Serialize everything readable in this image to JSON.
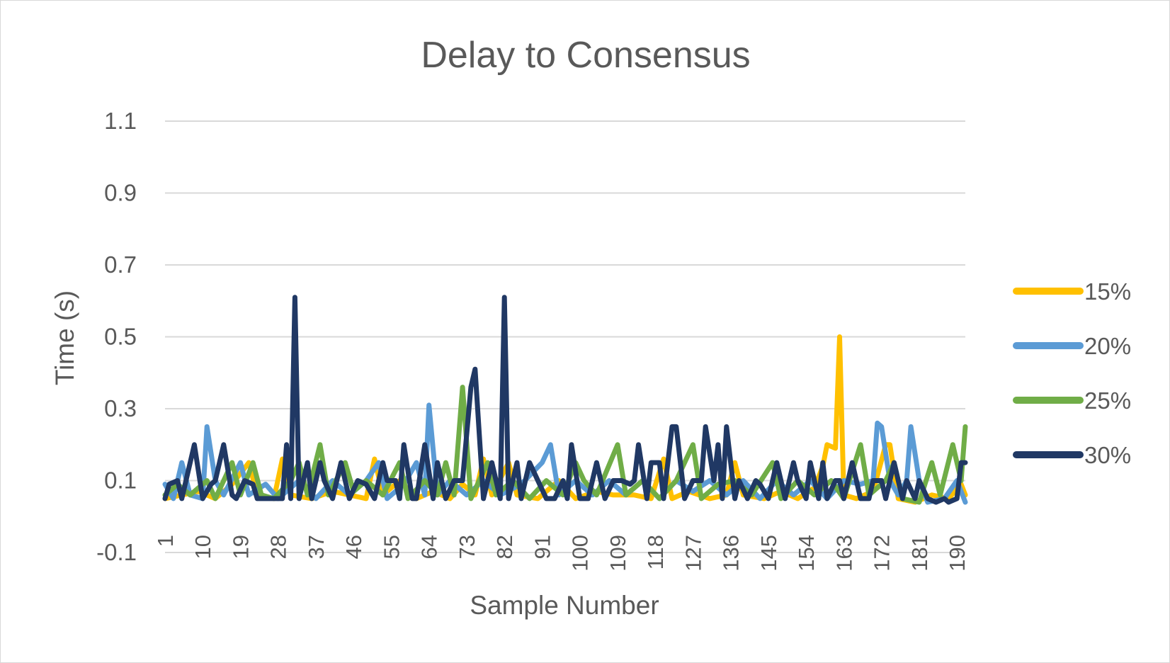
{
  "chart_data": {
    "type": "line",
    "title": "Delay to Consensus",
    "xlabel": "Sample Number",
    "ylabel": "Time (s)",
    "ylim": [
      -0.1,
      1.1
    ],
    "yticks": [
      "-0.1",
      "0.1",
      "0.3",
      "0.5",
      "0.7",
      "0.9",
      "1.1"
    ],
    "yticks_values": [
      -0.1,
      0.1,
      0.3,
      0.5,
      0.7,
      0.9,
      1.1
    ],
    "xticks": [
      "1",
      "10",
      "19",
      "28",
      "37",
      "46",
      "55",
      "64",
      "73",
      "82",
      "91",
      "100",
      "109",
      "118",
      "127",
      "136",
      "145",
      "154",
      "163",
      "172",
      "181",
      "190"
    ],
    "xticks_values": [
      1,
      10,
      19,
      28,
      37,
      46,
      55,
      64,
      73,
      82,
      91,
      100,
      109,
      118,
      127,
      136,
      145,
      154,
      163,
      172,
      181,
      190
    ],
    "xlim": [
      1,
      192
    ],
    "grid": true,
    "legend_position": "right",
    "series": [
      {
        "name": "15%",
        "color": "#FFC000",
        "points": [
          [
            1,
            0.05
          ],
          [
            5,
            0.06
          ],
          [
            9,
            0.07
          ],
          [
            13,
            0.05
          ],
          [
            17,
            0.09
          ],
          [
            21,
            0.15
          ],
          [
            23,
            0.06
          ],
          [
            27,
            0.05
          ],
          [
            29,
            0.16
          ],
          [
            31,
            0.06
          ],
          [
            36,
            0.05
          ],
          [
            41,
            0.07
          ],
          [
            45,
            0.06
          ],
          [
            49,
            0.05
          ],
          [
            51,
            0.16
          ],
          [
            53,
            0.06
          ],
          [
            57,
            0.1
          ],
          [
            61,
            0.05
          ],
          [
            65,
            0.07
          ],
          [
            69,
            0.05
          ],
          [
            72,
            0.09
          ],
          [
            75,
            0.06
          ],
          [
            77,
            0.16
          ],
          [
            79,
            0.06
          ],
          [
            83,
            0.15
          ],
          [
            85,
            0.06
          ],
          [
            90,
            0.05
          ],
          [
            95,
            0.1
          ],
          [
            99,
            0.05
          ],
          [
            104,
            0.07
          ],
          [
            108,
            0.06
          ],
          [
            113,
            0.06
          ],
          [
            117,
            0.05
          ],
          [
            120,
            0.16
          ],
          [
            122,
            0.05
          ],
          [
            126,
            0.07
          ],
          [
            131,
            0.05
          ],
          [
            135,
            0.06
          ],
          [
            137,
            0.15
          ],
          [
            139,
            0.06
          ],
          [
            144,
            0.05
          ],
          [
            148,
            0.07
          ],
          [
            152,
            0.05
          ],
          [
            156,
            0.08
          ],
          [
            158,
            0.14
          ],
          [
            159,
            0.2
          ],
          [
            161,
            0.19
          ],
          [
            162,
            0.5
          ],
          [
            163,
            0.06
          ],
          [
            166,
            0.05
          ],
          [
            170,
            0.07
          ],
          [
            173,
            0.2
          ],
          [
            174,
            0.2
          ],
          [
            176,
            0.05
          ],
          [
            180,
            0.04
          ],
          [
            184,
            0.06
          ],
          [
            188,
            0.05
          ],
          [
            191,
            0.09
          ],
          [
            192,
            0.06
          ]
        ]
      },
      {
        "name": "20%",
        "color": "#5B9BD5",
        "points": [
          [
            1,
            0.09
          ],
          [
            3,
            0.05
          ],
          [
            5,
            0.15
          ],
          [
            7,
            0.06
          ],
          [
            10,
            0.05
          ],
          [
            11,
            0.25
          ],
          [
            13,
            0.1
          ],
          [
            15,
            0.06
          ],
          [
            19,
            0.15
          ],
          [
            21,
            0.06
          ],
          [
            25,
            0.09
          ],
          [
            28,
            0.05
          ],
          [
            33,
            0.1
          ],
          [
            37,
            0.05
          ],
          [
            41,
            0.1
          ],
          [
            45,
            0.06
          ],
          [
            49,
            0.1
          ],
          [
            52,
            0.15
          ],
          [
            54,
            0.05
          ],
          [
            58,
            0.09
          ],
          [
            61,
            0.15
          ],
          [
            63,
            0.06
          ],
          [
            64,
            0.31
          ],
          [
            66,
            0.06
          ],
          [
            69,
            0.1
          ],
          [
            73,
            0.06
          ],
          [
            77,
            0.1
          ],
          [
            81,
            0.06
          ],
          [
            86,
            0.09
          ],
          [
            91,
            0.15
          ],
          [
            93,
            0.2
          ],
          [
            95,
            0.06
          ],
          [
            99,
            0.1
          ],
          [
            103,
            0.06
          ],
          [
            107,
            0.1
          ],
          [
            111,
            0.06
          ],
          [
            115,
            0.1
          ],
          [
            119,
            0.05
          ],
          [
            123,
            0.1
          ],
          [
            127,
            0.07
          ],
          [
            131,
            0.1
          ],
          [
            135,
            0.06
          ],
          [
            139,
            0.1
          ],
          [
            143,
            0.05
          ],
          [
            147,
            0.1
          ],
          [
            151,
            0.06
          ],
          [
            155,
            0.1
          ],
          [
            159,
            0.05
          ],
          [
            163,
            0.1
          ],
          [
            167,
            0.09
          ],
          [
            170,
            0.1
          ],
          [
            171,
            0.26
          ],
          [
            172,
            0.25
          ],
          [
            174,
            0.1
          ],
          [
            176,
            0.06
          ],
          [
            178,
            0.1
          ],
          [
            179,
            0.25
          ],
          [
            181,
            0.1
          ],
          [
            183,
            0.04
          ],
          [
            187,
            0.05
          ],
          [
            190,
            0.1
          ],
          [
            192,
            0.04
          ]
        ]
      },
      {
        "name": "25%",
        "color": "#70AD47",
        "points": [
          [
            1,
            0.06
          ],
          [
            4,
            0.09
          ],
          [
            7,
            0.06
          ],
          [
            11,
            0.1
          ],
          [
            13,
            0.05
          ],
          [
            17,
            0.15
          ],
          [
            19,
            0.06
          ],
          [
            22,
            0.15
          ],
          [
            24,
            0.06
          ],
          [
            27,
            0.05
          ],
          [
            31,
            0.1
          ],
          [
            33,
            0.15
          ],
          [
            35,
            0.06
          ],
          [
            38,
            0.2
          ],
          [
            40,
            0.06
          ],
          [
            44,
            0.15
          ],
          [
            46,
            0.07
          ],
          [
            49,
            0.1
          ],
          [
            53,
            0.06
          ],
          [
            57,
            0.15
          ],
          [
            59,
            0.05
          ],
          [
            63,
            0.1
          ],
          [
            66,
            0.06
          ],
          [
            68,
            0.15
          ],
          [
            70,
            0.06
          ],
          [
            72,
            0.36
          ],
          [
            74,
            0.05
          ],
          [
            78,
            0.15
          ],
          [
            80,
            0.06
          ],
          [
            84,
            0.1
          ],
          [
            88,
            0.05
          ],
          [
            92,
            0.1
          ],
          [
            96,
            0.06
          ],
          [
            99,
            0.15
          ],
          [
            101,
            0.1
          ],
          [
            104,
            0.06
          ],
          [
            109,
            0.2
          ],
          [
            111,
            0.06
          ],
          [
            115,
            0.1
          ],
          [
            119,
            0.05
          ],
          [
            123,
            0.1
          ],
          [
            127,
            0.2
          ],
          [
            129,
            0.05
          ],
          [
            133,
            0.09
          ],
          [
            137,
            0.1
          ],
          [
            141,
            0.06
          ],
          [
            146,
            0.15
          ],
          [
            148,
            0.05
          ],
          [
            152,
            0.1
          ],
          [
            156,
            0.06
          ],
          [
            160,
            0.1
          ],
          [
            163,
            0.05
          ],
          [
            167,
            0.2
          ],
          [
            169,
            0.06
          ],
          [
            173,
            0.1
          ],
          [
            175,
            0.15
          ],
          [
            177,
            0.05
          ],
          [
            181,
            0.04
          ],
          [
            184,
            0.15
          ],
          [
            186,
            0.06
          ],
          [
            189,
            0.2
          ],
          [
            191,
            0.1
          ],
          [
            192,
            0.25
          ]
        ]
      },
      {
        "name": "30%",
        "color": "#203864",
        "points": [
          [
            1,
            0.05
          ],
          [
            2,
            0.09
          ],
          [
            4,
            0.1
          ],
          [
            5,
            0.05
          ],
          [
            8,
            0.2
          ],
          [
            10,
            0.05
          ],
          [
            12,
            0.09
          ],
          [
            13,
            0.1
          ],
          [
            15,
            0.2
          ],
          [
            17,
            0.06
          ],
          [
            18,
            0.05
          ],
          [
            20,
            0.1
          ],
          [
            22,
            0.09
          ],
          [
            23,
            0.05
          ],
          [
            25,
            0.05
          ],
          [
            27,
            0.05
          ],
          [
            29,
            0.05
          ],
          [
            30,
            0.2
          ],
          [
            31,
            0.05
          ],
          [
            32,
            0.61
          ],
          [
            33,
            0.05
          ],
          [
            35,
            0.15
          ],
          [
            36,
            0.05
          ],
          [
            38,
            0.15
          ],
          [
            39,
            0.1
          ],
          [
            41,
            0.05
          ],
          [
            43,
            0.15
          ],
          [
            45,
            0.05
          ],
          [
            47,
            0.1
          ],
          [
            49,
            0.09
          ],
          [
            51,
            0.05
          ],
          [
            53,
            0.15
          ],
          [
            54,
            0.1
          ],
          [
            56,
            0.1
          ],
          [
            57,
            0.05
          ],
          [
            58,
            0.2
          ],
          [
            60,
            0.05
          ],
          [
            61,
            0.05
          ],
          [
            63,
            0.2
          ],
          [
            65,
            0.05
          ],
          [
            66,
            0.15
          ],
          [
            68,
            0.05
          ],
          [
            70,
            0.1
          ],
          [
            72,
            0.1
          ],
          [
            74,
            0.36
          ],
          [
            75,
            0.41
          ],
          [
            77,
            0.05
          ],
          [
            79,
            0.15
          ],
          [
            81,
            0.05
          ],
          [
            82,
            0.61
          ],
          [
            83,
            0.05
          ],
          [
            85,
            0.15
          ],
          [
            86,
            0.05
          ],
          [
            88,
            0.15
          ],
          [
            90,
            0.1
          ],
          [
            92,
            0.05
          ],
          [
            94,
            0.05
          ],
          [
            96,
            0.1
          ],
          [
            97,
            0.05
          ],
          [
            98,
            0.2
          ],
          [
            100,
            0.05
          ],
          [
            102,
            0.05
          ],
          [
            104,
            0.15
          ],
          [
            106,
            0.05
          ],
          [
            108,
            0.1
          ],
          [
            110,
            0.1
          ],
          [
            112,
            0.09
          ],
          [
            113,
            0.1
          ],
          [
            114,
            0.2
          ],
          [
            116,
            0.05
          ],
          [
            117,
            0.15
          ],
          [
            119,
            0.15
          ],
          [
            120,
            0.05
          ],
          [
            122,
            0.25
          ],
          [
            123,
            0.25
          ],
          [
            125,
            0.05
          ],
          [
            127,
            0.1
          ],
          [
            129,
            0.1
          ],
          [
            130,
            0.25
          ],
          [
            132,
            0.1
          ],
          [
            133,
            0.2
          ],
          [
            134,
            0.05
          ],
          [
            135,
            0.25
          ],
          [
            137,
            0.05
          ],
          [
            138,
            0.1
          ],
          [
            140,
            0.05
          ],
          [
            142,
            0.1
          ],
          [
            143,
            0.09
          ],
          [
            145,
            0.05
          ],
          [
            147,
            0.15
          ],
          [
            149,
            0.05
          ],
          [
            151,
            0.15
          ],
          [
            152,
            0.1
          ],
          [
            154,
            0.05
          ],
          [
            155,
            0.15
          ],
          [
            157,
            0.05
          ],
          [
            158,
            0.15
          ],
          [
            159,
            0.05
          ],
          [
            161,
            0.1
          ],
          [
            162,
            0.1
          ],
          [
            163,
            0.05
          ],
          [
            165,
            0.15
          ],
          [
            167,
            0.05
          ],
          [
            169,
            0.05
          ],
          [
            170,
            0.1
          ],
          [
            172,
            0.1
          ],
          [
            173,
            0.05
          ],
          [
            175,
            0.15
          ],
          [
            177,
            0.05
          ],
          [
            178,
            0.1
          ],
          [
            180,
            0.05
          ],
          [
            181,
            0.1
          ],
          [
            183,
            0.05
          ],
          [
            185,
            0.04
          ],
          [
            187,
            0.05
          ],
          [
            188,
            0.04
          ],
          [
            190,
            0.05
          ],
          [
            191,
            0.15
          ],
          [
            192,
            0.15
          ]
        ]
      }
    ]
  }
}
